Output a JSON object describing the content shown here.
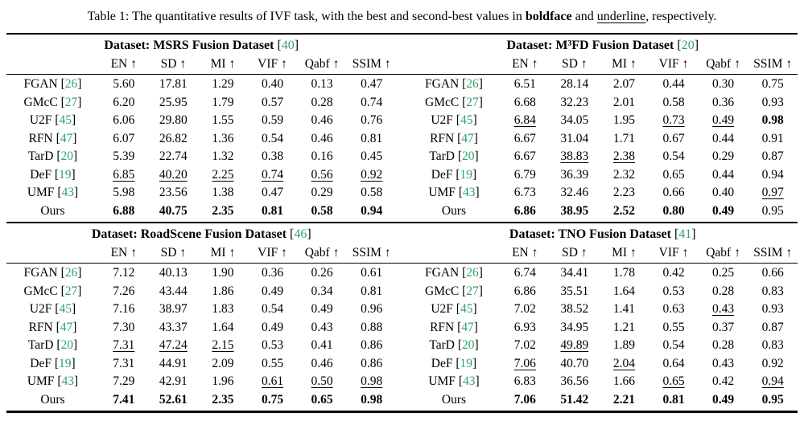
{
  "caption": {
    "prefix": "Table 1: The quantitative results of IVF task, with the best and second-best values in ",
    "bold_word": "boldface",
    "middle": " and ",
    "underline_word": "underline",
    "suffix": ", respectively."
  },
  "labels": {
    "dataset_prefix": "Dataset: ",
    "arrow": "↑",
    "cite_open": "[",
    "cite_close": "]"
  },
  "colors": {
    "citation_green": "#2da364"
  },
  "columns": [
    "EN",
    "SD",
    "MI",
    "VIF",
    "Qabf",
    "SSIM"
  ],
  "style_legend": {
    "p": "plain",
    "b": "best-boldface",
    "u": "second-best-underline"
  },
  "datasets": [
    {
      "name": "MSRS Fusion Dataset",
      "cite": "40",
      "rows": [
        {
          "method": "FGAN",
          "cite": "26",
          "values": [
            "5.60",
            "17.81",
            "1.29",
            "0.40",
            "0.13",
            "0.47"
          ],
          "styles": "pppppp"
        },
        {
          "method": "GMcC",
          "cite": "27",
          "values": [
            "6.20",
            "25.95",
            "1.79",
            "0.57",
            "0.28",
            "0.74"
          ],
          "styles": "pppppp"
        },
        {
          "method": "U2F",
          "cite": "45",
          "values": [
            "6.06",
            "29.80",
            "1.55",
            "0.59",
            "0.46",
            "0.76"
          ],
          "styles": "pppppp"
        },
        {
          "method": "RFN",
          "cite": "47",
          "values": [
            "6.07",
            "26.82",
            "1.36",
            "0.54",
            "0.46",
            "0.81"
          ],
          "styles": "pppppp"
        },
        {
          "method": "TarD",
          "cite": "20",
          "values": [
            "5.39",
            "22.74",
            "1.32",
            "0.38",
            "0.16",
            "0.45"
          ],
          "styles": "pppppp"
        },
        {
          "method": "DeF",
          "cite": "19",
          "values": [
            "6.85",
            "40.20",
            "2.25",
            "0.74",
            "0.56",
            "0.92"
          ],
          "styles": "uuuuuu"
        },
        {
          "method": "UMF",
          "cite": "43",
          "values": [
            "5.98",
            "23.56",
            "1.38",
            "0.47",
            "0.29",
            "0.58"
          ],
          "styles": "pppppp"
        },
        {
          "method": "Ours",
          "values": [
            "6.88",
            "40.75",
            "2.35",
            "0.81",
            "0.58",
            "0.94"
          ],
          "styles": "bbbbbb"
        }
      ]
    },
    {
      "name": "M³FD Fusion Dataset",
      "cite": "20",
      "rows": [
        {
          "method": "FGAN",
          "cite": "26",
          "values": [
            "6.51",
            "28.14",
            "2.07",
            "0.44",
            "0.30",
            "0.75"
          ],
          "styles": "pppppp"
        },
        {
          "method": "GMcC",
          "cite": "27",
          "values": [
            "6.68",
            "32.23",
            "2.01",
            "0.58",
            "0.36",
            "0.93"
          ],
          "styles": "pppppp"
        },
        {
          "method": "U2F",
          "cite": "45",
          "values": [
            "6.84",
            "34.05",
            "1.95",
            "0.73",
            "0.49",
            "0.98"
          ],
          "styles": "uppuub"
        },
        {
          "method": "RFN",
          "cite": "47",
          "values": [
            "6.67",
            "31.04",
            "1.71",
            "0.67",
            "0.44",
            "0.91"
          ],
          "styles": "pppppp"
        },
        {
          "method": "TarD",
          "cite": "20",
          "values": [
            "6.67",
            "38.83",
            "2.38",
            "0.54",
            "0.29",
            "0.87"
          ],
          "styles": "puuppp"
        },
        {
          "method": "DeF",
          "cite": "19",
          "values": [
            "6.79",
            "36.39",
            "2.32",
            "0.65",
            "0.44",
            "0.94"
          ],
          "styles": "pppppp"
        },
        {
          "method": "UMF",
          "cite": "43",
          "values": [
            "6.73",
            "32.46",
            "2.23",
            "0.66",
            "0.40",
            "0.97"
          ],
          "styles": "pppppu"
        },
        {
          "method": "Ours",
          "values": [
            "6.86",
            "38.95",
            "2.52",
            "0.80",
            "0.49",
            "0.95"
          ],
          "styles": "bbbbbp"
        }
      ]
    },
    {
      "name": "RoadScene Fusion Dataset",
      "cite": "46",
      "rows": [
        {
          "method": "FGAN",
          "cite": "26",
          "values": [
            "7.12",
            "40.13",
            "1.90",
            "0.36",
            "0.26",
            "0.61"
          ],
          "styles": "pppppp"
        },
        {
          "method": "GMcC",
          "cite": "27",
          "values": [
            "7.26",
            "43.44",
            "1.86",
            "0.49",
            "0.34",
            "0.81"
          ],
          "styles": "pppppp"
        },
        {
          "method": "U2F",
          "cite": "45",
          "values": [
            "7.16",
            "38.97",
            "1.83",
            "0.54",
            "0.49",
            "0.96"
          ],
          "styles": "pppppp"
        },
        {
          "method": "RFN",
          "cite": "47",
          "values": [
            "7.30",
            "43.37",
            "1.64",
            "0.49",
            "0.43",
            "0.88"
          ],
          "styles": "pppppp"
        },
        {
          "method": "TarD",
          "cite": "20",
          "values": [
            "7.31",
            "47.24",
            "2.15",
            "0.53",
            "0.41",
            "0.86"
          ],
          "styles": "uuuppp"
        },
        {
          "method": "DeF",
          "cite": "19",
          "values": [
            "7.31",
            "44.91",
            "2.09",
            "0.55",
            "0.46",
            "0.86"
          ],
          "styles": "pppppp"
        },
        {
          "method": "UMF",
          "cite": "43",
          "values": [
            "7.29",
            "42.91",
            "1.96",
            "0.61",
            "0.50",
            "0.98"
          ],
          "styles": "pppuuu"
        },
        {
          "method": "Ours",
          "values": [
            "7.41",
            "52.61",
            "2.35",
            "0.75",
            "0.65",
            "0.98"
          ],
          "styles": "bbbbbb"
        }
      ]
    },
    {
      "name": "TNO Fusion Dataset",
      "cite": "41",
      "rows": [
        {
          "method": "FGAN",
          "cite": "26",
          "values": [
            "6.74",
            "34.41",
            "1.78",
            "0.42",
            "0.25",
            "0.66"
          ],
          "styles": "pppppp"
        },
        {
          "method": "GMcC",
          "cite": "27",
          "values": [
            "6.86",
            "35.51",
            "1.64",
            "0.53",
            "0.28",
            "0.83"
          ],
          "styles": "pppppp"
        },
        {
          "method": "U2F",
          "cite": "45",
          "values": [
            "7.02",
            "38.52",
            "1.41",
            "0.63",
            "0.43",
            "0.93"
          ],
          "styles": "ppppup"
        },
        {
          "method": "RFN",
          "cite": "47",
          "values": [
            "6.93",
            "34.95",
            "1.21",
            "0.55",
            "0.37",
            "0.87"
          ],
          "styles": "pppppp"
        },
        {
          "method": "TarD",
          "cite": "20",
          "values": [
            "7.02",
            "49.89",
            "1.89",
            "0.54",
            "0.28",
            "0.83"
          ],
          "styles": "pupppp"
        },
        {
          "method": "DeF",
          "cite": "19",
          "values": [
            "7.06",
            "40.70",
            "2.04",
            "0.64",
            "0.43",
            "0.92"
          ],
          "styles": "upuppp"
        },
        {
          "method": "UMF",
          "cite": "43",
          "values": [
            "6.83",
            "36.56",
            "1.66",
            "0.65",
            "0.42",
            "0.94"
          ],
          "styles": "pppupu"
        },
        {
          "method": "Ours",
          "values": [
            "7.06",
            "51.42",
            "2.21",
            "0.81",
            "0.49",
            "0.95"
          ],
          "styles": "bbbbbb"
        }
      ]
    }
  ]
}
